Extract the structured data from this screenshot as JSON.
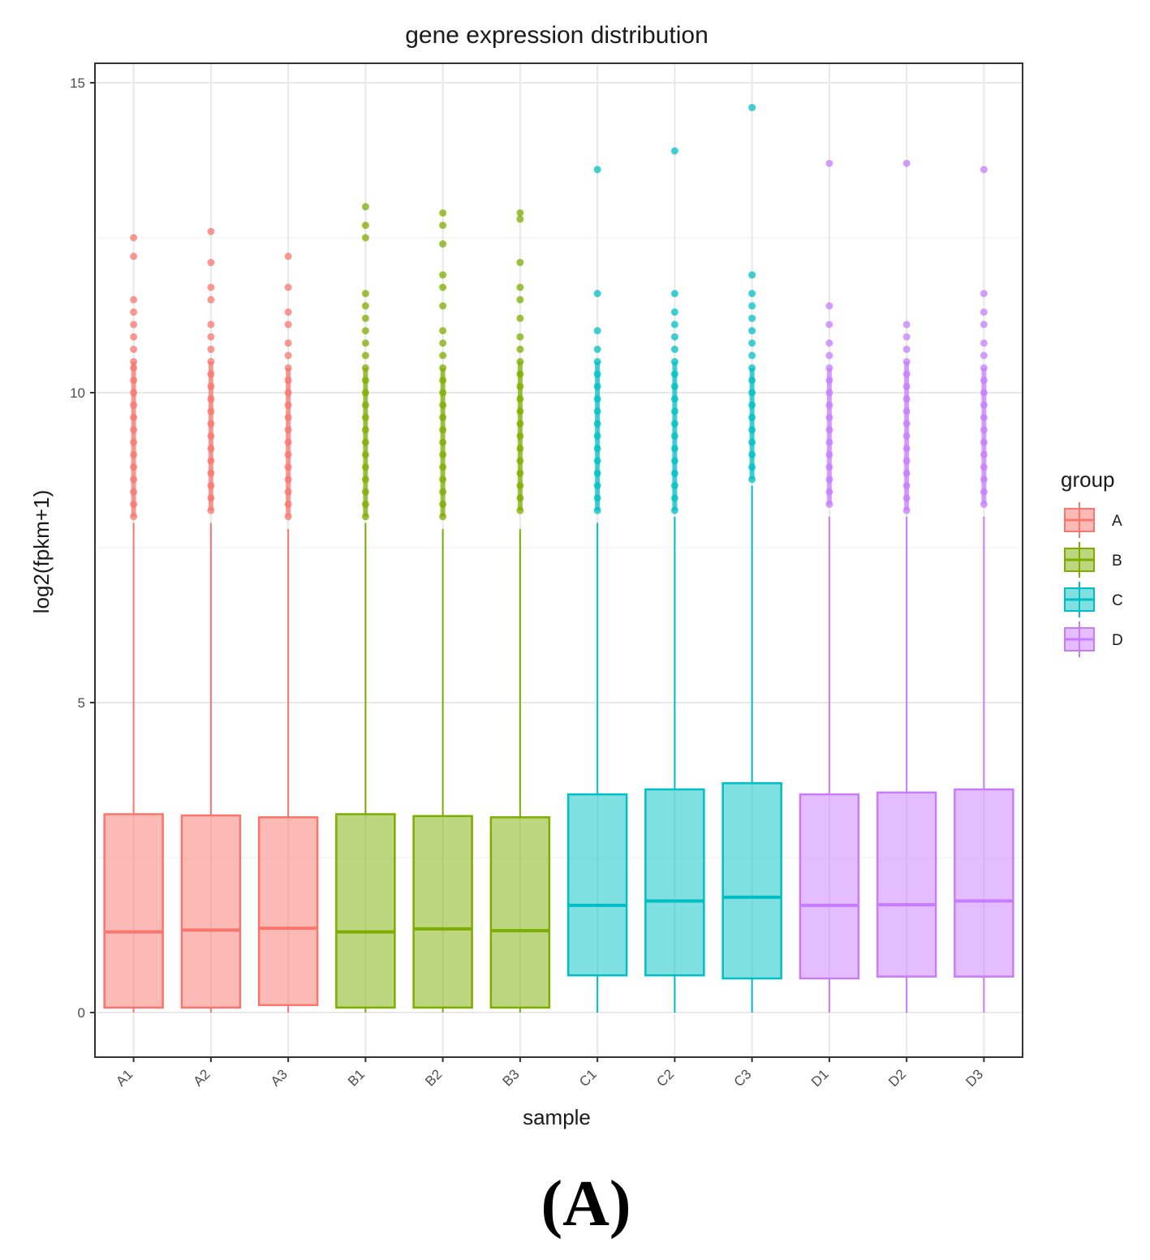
{
  "panel_label": "(A)",
  "chart_data": {
    "type": "box",
    "title": "gene expression distribution",
    "xlabel": "sample",
    "ylabel": "log2(fpkm+1)",
    "ylim": [
      -1.2,
      15.4
    ],
    "yticks": [
      0,
      5,
      10,
      15
    ],
    "ytick_labels": [
      "0",
      "5",
      "10",
      "15"
    ],
    "grid": true,
    "legend": {
      "title": "group",
      "position": "right",
      "entries": [
        {
          "label": "A",
          "color": "#F8766D"
        },
        {
          "label": "B",
          "color": "#7CAE00"
        },
        {
          "label": "C",
          "color": "#00BFC4"
        },
        {
          "label": "D",
          "color": "#C77CFF"
        }
      ]
    },
    "samples": [
      {
        "name": "A1",
        "group": "A",
        "q1": 0.08,
        "median": 1.3,
        "q3": 3.2,
        "whisker_low": 0.0,
        "whisker_high": 7.9,
        "outliers": [
          12.5,
          12.2,
          11.5,
          11.3,
          11.1,
          10.9,
          10.7,
          10.5,
          10.4,
          10.2,
          10.0,
          9.8,
          9.6,
          9.4,
          9.2,
          9.0,
          8.8,
          8.6,
          8.4,
          8.2,
          8.0
        ]
      },
      {
        "name": "A2",
        "group": "A",
        "q1": 0.08,
        "median": 1.33,
        "q3": 3.18,
        "whisker_low": 0.0,
        "whisker_high": 7.9,
        "outliers": [
          12.6,
          12.1,
          11.7,
          11.5,
          11.1,
          10.9,
          10.7,
          10.5,
          10.3,
          10.1,
          9.9,
          9.7,
          9.5,
          9.3,
          9.1,
          8.9,
          8.7,
          8.5,
          8.3,
          8.1
        ]
      },
      {
        "name": "A3",
        "group": "A",
        "q1": 0.12,
        "median": 1.36,
        "q3": 3.15,
        "whisker_low": 0.0,
        "whisker_high": 7.8,
        "outliers": [
          12.2,
          11.7,
          11.3,
          11.1,
          10.8,
          10.6,
          10.4,
          10.2,
          10.0,
          9.8,
          9.6,
          9.4,
          9.2,
          9.0,
          8.8,
          8.6,
          8.4,
          8.2,
          8.0
        ]
      },
      {
        "name": "B1",
        "group": "B",
        "q1": 0.08,
        "median": 1.3,
        "q3": 3.2,
        "whisker_low": 0.0,
        "whisker_high": 7.9,
        "outliers": [
          13.0,
          12.7,
          12.5,
          11.6,
          11.4,
          11.2,
          11.0,
          10.8,
          10.6,
          10.4,
          10.2,
          10.0,
          9.8,
          9.6,
          9.4,
          9.2,
          9.0,
          8.8,
          8.6,
          8.4,
          8.2,
          8.0
        ]
      },
      {
        "name": "B2",
        "group": "B",
        "q1": 0.08,
        "median": 1.35,
        "q3": 3.17,
        "whisker_low": 0.0,
        "whisker_high": 7.8,
        "outliers": [
          12.9,
          12.7,
          12.4,
          11.9,
          11.7,
          11.4,
          11.0,
          10.8,
          10.6,
          10.4,
          10.2,
          10.0,
          9.8,
          9.6,
          9.4,
          9.2,
          9.0,
          8.8,
          8.6,
          8.4,
          8.2,
          8.0
        ]
      },
      {
        "name": "B3",
        "group": "B",
        "q1": 0.08,
        "median": 1.32,
        "q3": 3.15,
        "whisker_low": 0.0,
        "whisker_high": 7.8,
        "outliers": [
          12.9,
          12.8,
          12.1,
          11.7,
          11.5,
          11.2,
          10.9,
          10.7,
          10.5,
          10.3,
          10.1,
          9.9,
          9.7,
          9.5,
          9.3,
          9.1,
          8.9,
          8.7,
          8.5,
          8.3,
          8.1
        ]
      },
      {
        "name": "C1",
        "group": "C",
        "q1": 0.6,
        "median": 1.73,
        "q3": 3.52,
        "whisker_low": 0.0,
        "whisker_high": 7.9,
        "outliers": [
          13.6,
          11.6,
          11.0,
          10.7,
          10.5,
          10.3,
          10.1,
          9.9,
          9.7,
          9.5,
          9.3,
          9.1,
          8.9,
          8.7,
          8.5,
          8.3,
          8.1
        ]
      },
      {
        "name": "C2",
        "group": "C",
        "q1": 0.6,
        "median": 1.8,
        "q3": 3.6,
        "whisker_low": 0.0,
        "whisker_high": 8.0,
        "outliers": [
          13.9,
          11.6,
          11.3,
          11.1,
          10.9,
          10.7,
          10.5,
          10.3,
          10.1,
          9.9,
          9.7,
          9.5,
          9.3,
          9.1,
          8.9,
          8.7,
          8.5,
          8.3,
          8.1
        ]
      },
      {
        "name": "C3",
        "group": "C",
        "q1": 0.55,
        "median": 1.86,
        "q3": 3.7,
        "whisker_low": 0.0,
        "whisker_high": 8.5,
        "outliers": [
          14.6,
          11.9,
          11.6,
          11.4,
          11.2,
          11.0,
          10.8,
          10.6,
          10.4,
          10.2,
          10.0,
          9.8,
          9.6,
          9.4,
          9.2,
          9.0,
          8.8,
          8.6
        ]
      },
      {
        "name": "D1",
        "group": "D",
        "q1": 0.55,
        "median": 1.73,
        "q3": 3.52,
        "whisker_low": 0.0,
        "whisker_high": 8.0,
        "outliers": [
          13.7,
          11.4,
          11.1,
          10.8,
          10.6,
          10.4,
          10.2,
          10.0,
          9.8,
          9.6,
          9.4,
          9.2,
          9.0,
          8.8,
          8.6,
          8.4,
          8.2
        ]
      },
      {
        "name": "D2",
        "group": "D",
        "q1": 0.58,
        "median": 1.74,
        "q3": 3.55,
        "whisker_low": 0.0,
        "whisker_high": 8.0,
        "outliers": [
          13.7,
          11.1,
          10.9,
          10.7,
          10.5,
          10.3,
          10.1,
          9.9,
          9.7,
          9.5,
          9.3,
          9.1,
          8.9,
          8.7,
          8.5,
          8.3,
          8.1
        ]
      },
      {
        "name": "D3",
        "group": "D",
        "q1": 0.58,
        "median": 1.8,
        "q3": 3.6,
        "whisker_low": 0.0,
        "whisker_high": 8.0,
        "outliers": [
          13.6,
          11.6,
          11.3,
          11.1,
          10.8,
          10.6,
          10.4,
          10.2,
          10.0,
          9.8,
          9.6,
          9.4,
          9.2,
          9.0,
          8.8,
          8.6,
          8.4,
          8.2
        ]
      }
    ]
  }
}
